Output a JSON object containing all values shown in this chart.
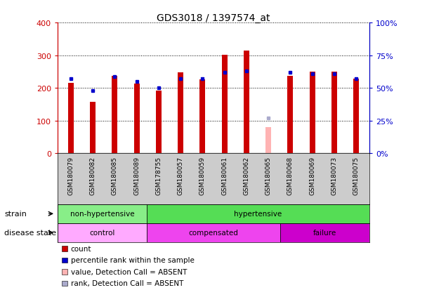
{
  "title": "GDS3018 / 1397574_at",
  "samples": [
    "GSM180079",
    "GSM180082",
    "GSM180085",
    "GSM180089",
    "GSM178755",
    "GSM180057",
    "GSM180059",
    "GSM180061",
    "GSM180062",
    "GSM180065",
    "GSM180068",
    "GSM180069",
    "GSM180073",
    "GSM180075"
  ],
  "counts": [
    215,
    158,
    238,
    213,
    192,
    248,
    226,
    302,
    315,
    80,
    238,
    250,
    250,
    228
  ],
  "percentile_ranks": [
    57,
    48,
    59,
    55,
    50,
    57,
    57,
    62,
    63,
    27,
    62,
    61,
    61,
    57
  ],
  "absent_flags": [
    false,
    false,
    false,
    false,
    false,
    false,
    false,
    false,
    false,
    true,
    false,
    false,
    false,
    false
  ],
  "bar_color_normal": "#cc0000",
  "bar_color_absent": "#ffb3b3",
  "dot_color_normal": "#0000cc",
  "dot_color_absent": "#aaaacc",
  "ylim_left": [
    0,
    400
  ],
  "ylim_right": [
    0,
    100
  ],
  "yticks_left": [
    0,
    100,
    200,
    300,
    400
  ],
  "ytick_labels_left": [
    "0",
    "100",
    "200",
    "300",
    "400"
  ],
  "ytick_labels_right": [
    "0%",
    "25%",
    "50%",
    "75%",
    "100%"
  ],
  "yticks_right": [
    0,
    25,
    50,
    75,
    100
  ],
  "strain_groups": [
    {
      "label": "non-hypertensive",
      "start": 0,
      "end": 4,
      "color": "#88ee88"
    },
    {
      "label": "hypertensive",
      "start": 4,
      "end": 14,
      "color": "#55dd55"
    }
  ],
  "disease_groups": [
    {
      "label": "control",
      "start": 0,
      "end": 4,
      "color": "#ffaaff"
    },
    {
      "label": "compensated",
      "start": 4,
      "end": 10,
      "color": "#ee44ee"
    },
    {
      "label": "failure",
      "start": 10,
      "end": 14,
      "color": "#cc00cc"
    }
  ],
  "legend_items": [
    {
      "label": "count",
      "color": "#cc0000"
    },
    {
      "label": "percentile rank within the sample",
      "color": "#0000cc"
    },
    {
      "label": "value, Detection Call = ABSENT",
      "color": "#ffb3b3"
    },
    {
      "label": "rank, Detection Call = ABSENT",
      "color": "#aaaacc"
    }
  ],
  "strain_label": "strain",
  "disease_label": "disease state",
  "tick_label_color_left": "#cc0000",
  "tick_label_color_right": "#0000cc",
  "xtick_bg_color": "#cccccc",
  "bar_width": 0.25
}
